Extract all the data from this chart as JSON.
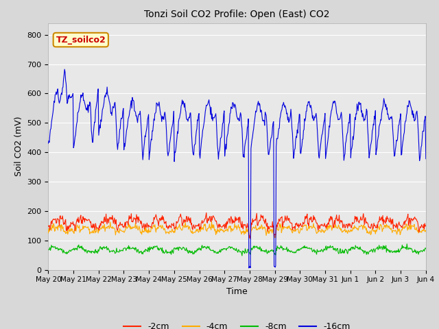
{
  "title": "Tonzi Soil CO2 Profile: Open (East) CO2",
  "ylabel": "Soil CO2 (mV)",
  "xlabel": "Time",
  "ylim": [
    0,
    840
  ],
  "yticks": [
    0,
    100,
    200,
    300,
    400,
    500,
    600,
    700,
    800
  ],
  "xtick_labels": [
    "May 20",
    "May 21",
    "May 22",
    "May 23",
    "May 24",
    "May 25",
    "May 26",
    "May 27",
    "May 28",
    "May 29",
    "May 30",
    "May 31",
    "Jun 1",
    "Jun 2",
    "Jun 3",
    "Jun 4"
  ],
  "legend_label": "TZ_soilco2",
  "legend_box_color": "#ffffcc",
  "legend_box_edge": "#cc8800",
  "legend_text_color": "#cc0000",
  "fig_bg_color": "#d8d8d8",
  "plot_bg_color": "#e8e8e8",
  "colors": {
    "2cm": "#ff2200",
    "4cm": "#ffaa00",
    "8cm": "#00bb00",
    "16cm": "#0000dd"
  },
  "line_width": 0.8
}
